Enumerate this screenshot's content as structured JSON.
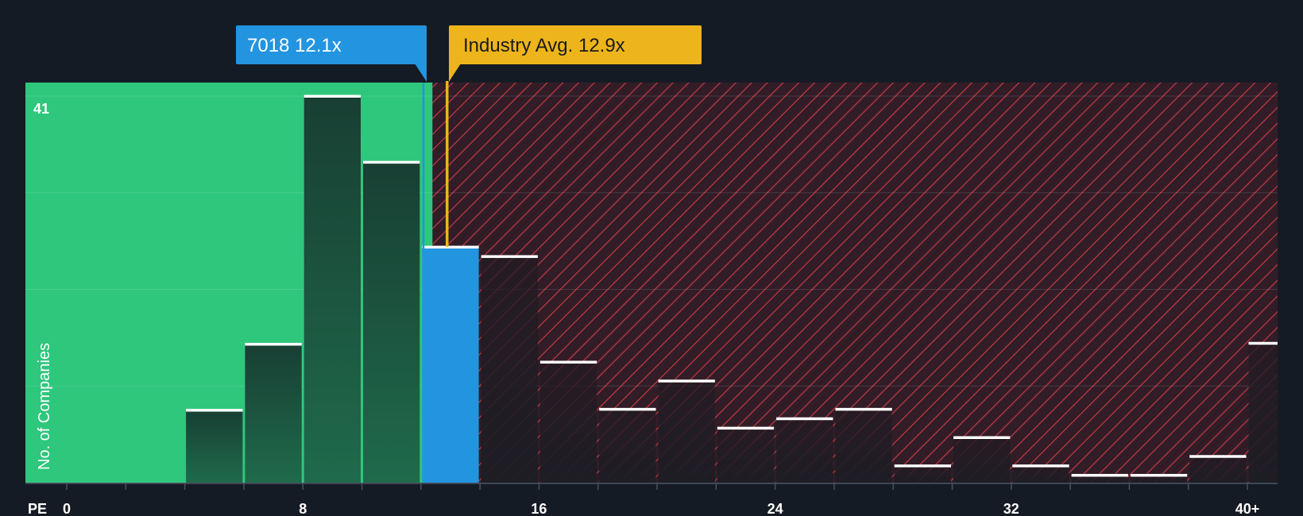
{
  "chart_data": {
    "type": "bar",
    "title": "",
    "xlabel": "PE",
    "ylabel": "No. of Companies",
    "x_tick_labels": [
      "0",
      "8",
      "16",
      "24",
      "32",
      "40+"
    ],
    "x_tick_values": [
      0,
      8,
      16,
      24,
      32,
      40
    ],
    "xlim": [
      -1.4,
      41.0
    ],
    "ylim": [
      0,
      41
    ],
    "y_max_label": "41",
    "bin_width": 2,
    "bins": [
      {
        "start": 0,
        "end": 2,
        "count": 0
      },
      {
        "start": 2,
        "end": 4,
        "count": 0
      },
      {
        "start": 4,
        "end": 6,
        "count": 7.7
      },
      {
        "start": 6,
        "end": 8,
        "count": 14.7
      },
      {
        "start": 8,
        "end": 10,
        "count": 41
      },
      {
        "start": 10,
        "end": 12,
        "count": 34
      },
      {
        "start": 12,
        "end": 14,
        "count": 25
      },
      {
        "start": 14,
        "end": 16,
        "count": 24
      },
      {
        "start": 16,
        "end": 18,
        "count": 12.8
      },
      {
        "start": 18,
        "end": 20,
        "count": 7.8
      },
      {
        "start": 20,
        "end": 22,
        "count": 10.8
      },
      {
        "start": 22,
        "end": 24,
        "count": 5.8
      },
      {
        "start": 24,
        "end": 26,
        "count": 6.8
      },
      {
        "start": 26,
        "end": 28,
        "count": 7.8
      },
      {
        "start": 28,
        "end": 30,
        "count": 1.8
      },
      {
        "start": 30,
        "end": 32,
        "count": 4.8
      },
      {
        "start": 32,
        "end": 34,
        "count": 1.8
      },
      {
        "start": 34,
        "end": 36,
        "count": 0.8
      },
      {
        "start": 36,
        "end": 38,
        "count": 0.8
      },
      {
        "start": 38,
        "end": 40,
        "count": 2.8
      },
      {
        "start": 40,
        "end": 42,
        "count": 14.8
      }
    ],
    "company": {
      "ticker": "7018",
      "pe": 12.1,
      "label": "7018 12.1x",
      "highlight_bin_start": 12
    },
    "industry": {
      "pe": 12.9,
      "label": "Industry Avg. 12.9x"
    },
    "colors": {
      "background": "#151b24",
      "undervalued_zone": "#2ec77c",
      "overvalued_zone": "#321d27",
      "hatch": "#c23a44",
      "bar_in_green": "#1e5a44",
      "bar_in_red": "#2a1d25",
      "company_bar": "#2394e0",
      "company_callout": "#2394e0",
      "industry_callout": "#edb51b",
      "bar_cap": "#ffffff",
      "axis_text": "#ffffff"
    }
  }
}
